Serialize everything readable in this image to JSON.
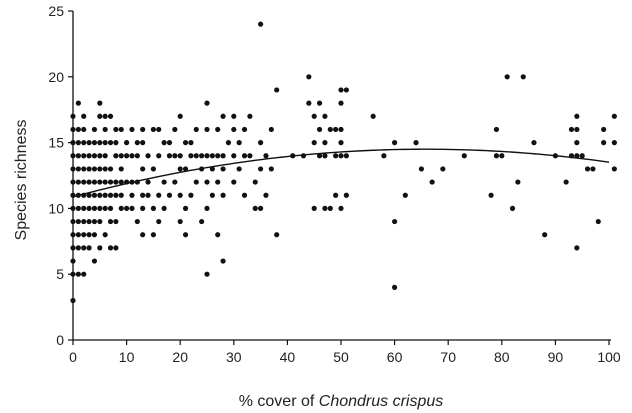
{
  "chart_data": {
    "type": "scatter",
    "title": "",
    "xlabel_prefix": "% cover of ",
    "xlabel_italic": "Chondrus crispus",
    "ylabel": "Species richness",
    "xlim": [
      0,
      100
    ],
    "ylim": [
      0,
      25
    ],
    "xticks": [
      0,
      10,
      20,
      30,
      40,
      50,
      60,
      70,
      80,
      90,
      100
    ],
    "yticks": [
      0,
      5,
      10,
      15,
      20,
      25
    ],
    "grid": false,
    "legend": "none",
    "marker_color": "#111111",
    "fit_color": "#111111",
    "points": [
      [
        0,
        3
      ],
      [
        0,
        5
      ],
      [
        0,
        6
      ],
      [
        0,
        7
      ],
      [
        0,
        8
      ],
      [
        0,
        9
      ],
      [
        0,
        10
      ],
      [
        0,
        11
      ],
      [
        0,
        12
      ],
      [
        0,
        13
      ],
      [
        0,
        14
      ],
      [
        0,
        15
      ],
      [
        0,
        16
      ],
      [
        0,
        17
      ],
      [
        1,
        5
      ],
      [
        1,
        7
      ],
      [
        1,
        8
      ],
      [
        1,
        9
      ],
      [
        1,
        10
      ],
      [
        1,
        11
      ],
      [
        1,
        12
      ],
      [
        1,
        13
      ],
      [
        1,
        14
      ],
      [
        1,
        15
      ],
      [
        1,
        16
      ],
      [
        1,
        18
      ],
      [
        2,
        5
      ],
      [
        2,
        7
      ],
      [
        2,
        8
      ],
      [
        2,
        9
      ],
      [
        2,
        10
      ],
      [
        2,
        11
      ],
      [
        2,
        12
      ],
      [
        2,
        13
      ],
      [
        2,
        14
      ],
      [
        2,
        15
      ],
      [
        2,
        16
      ],
      [
        2,
        17
      ],
      [
        3,
        7
      ],
      [
        3,
        8
      ],
      [
        3,
        9
      ],
      [
        3,
        10
      ],
      [
        3,
        11
      ],
      [
        3,
        12
      ],
      [
        3,
        13
      ],
      [
        3,
        14
      ],
      [
        3,
        15
      ],
      [
        4,
        6
      ],
      [
        4,
        8
      ],
      [
        4,
        9
      ],
      [
        4,
        10
      ],
      [
        4,
        11
      ],
      [
        4,
        12
      ],
      [
        4,
        13
      ],
      [
        4,
        14
      ],
      [
        4,
        15
      ],
      [
        4,
        16
      ],
      [
        5,
        7
      ],
      [
        5,
        9
      ],
      [
        5,
        10
      ],
      [
        5,
        11
      ],
      [
        5,
        12
      ],
      [
        5,
        13
      ],
      [
        5,
        14
      ],
      [
        5,
        15
      ],
      [
        5,
        17
      ],
      [
        5,
        18
      ],
      [
        6,
        8
      ],
      [
        6,
        10
      ],
      [
        6,
        11
      ],
      [
        6,
        12
      ],
      [
        6,
        13
      ],
      [
        6,
        14
      ],
      [
        6,
        15
      ],
      [
        6,
        16
      ],
      [
        6,
        17
      ],
      [
        7,
        7
      ],
      [
        7,
        9
      ],
      [
        7,
        10
      ],
      [
        7,
        11
      ],
      [
        7,
        12
      ],
      [
        7,
        13
      ],
      [
        7,
        15
      ],
      [
        7,
        17
      ],
      [
        8,
        7
      ],
      [
        8,
        9
      ],
      [
        8,
        11
      ],
      [
        8,
        12
      ],
      [
        8,
        14
      ],
      [
        8,
        15
      ],
      [
        8,
        16
      ],
      [
        9,
        10
      ],
      [
        9,
        11
      ],
      [
        9,
        12
      ],
      [
        9,
        13
      ],
      [
        9,
        14
      ],
      [
        9,
        16
      ],
      [
        10,
        10
      ],
      [
        10,
        12
      ],
      [
        10,
        14
      ],
      [
        10,
        15
      ],
      [
        11,
        10
      ],
      [
        11,
        11
      ],
      [
        11,
        12
      ],
      [
        11,
        14
      ],
      [
        11,
        16
      ],
      [
        12,
        9
      ],
      [
        12,
        12
      ],
      [
        12,
        14
      ],
      [
        12,
        15
      ],
      [
        13,
        8
      ],
      [
        13,
        10
      ],
      [
        13,
        11
      ],
      [
        13,
        13
      ],
      [
        13,
        15
      ],
      [
        13,
        16
      ],
      [
        14,
        11
      ],
      [
        14,
        12
      ],
      [
        14,
        14
      ],
      [
        15,
        8
      ],
      [
        15,
        10
      ],
      [
        15,
        13
      ],
      [
        15,
        16
      ],
      [
        16,
        9
      ],
      [
        16,
        11
      ],
      [
        16,
        14
      ],
      [
        16,
        16
      ],
      [
        17,
        10
      ],
      [
        17,
        12
      ],
      [
        17,
        15
      ],
      [
        18,
        11
      ],
      [
        18,
        14
      ],
      [
        18,
        15
      ],
      [
        19,
        12
      ],
      [
        19,
        14
      ],
      [
        19,
        16
      ],
      [
        20,
        9
      ],
      [
        20,
        11
      ],
      [
        20,
        13
      ],
      [
        20,
        14
      ],
      [
        20,
        17
      ],
      [
        21,
        8
      ],
      [
        21,
        10
      ],
      [
        21,
        13
      ],
      [
        21,
        15
      ],
      [
        22,
        11
      ],
      [
        22,
        14
      ],
      [
        22,
        15
      ],
      [
        23,
        12
      ],
      [
        23,
        14
      ],
      [
        23,
        16
      ],
      [
        24,
        9
      ],
      [
        24,
        13
      ],
      [
        24,
        14
      ],
      [
        25,
        5
      ],
      [
        25,
        10
      ],
      [
        25,
        12
      ],
      [
        25,
        14
      ],
      [
        25,
        16
      ],
      [
        25,
        18
      ],
      [
        26,
        11
      ],
      [
        26,
        13
      ],
      [
        26,
        14
      ],
      [
        27,
        8
      ],
      [
        27,
        12
      ],
      [
        27,
        14
      ],
      [
        27,
        16
      ],
      [
        28,
        6
      ],
      [
        28,
        11
      ],
      [
        28,
        13
      ],
      [
        28,
        14
      ],
      [
        28,
        17
      ],
      [
        29,
        15
      ],
      [
        30,
        12
      ],
      [
        30,
        14
      ],
      [
        30,
        16
      ],
      [
        30,
        17
      ],
      [
        31,
        13
      ],
      [
        31,
        15
      ],
      [
        32,
        11
      ],
      [
        32,
        14
      ],
      [
        32,
        16
      ],
      [
        33,
        14
      ],
      [
        33,
        17
      ],
      [
        34,
        10
      ],
      [
        34,
        12
      ],
      [
        35,
        10
      ],
      [
        35,
        13
      ],
      [
        35,
        15
      ],
      [
        35,
        24
      ],
      [
        36,
        11
      ],
      [
        36,
        14
      ],
      [
        37,
        13
      ],
      [
        37,
        16
      ],
      [
        38,
        8
      ],
      [
        38,
        19
      ],
      [
        41,
        14
      ],
      [
        43,
        14
      ],
      [
        44,
        18
      ],
      [
        44,
        20
      ],
      [
        45,
        10
      ],
      [
        45,
        15
      ],
      [
        45,
        17
      ],
      [
        46,
        14
      ],
      [
        46,
        16
      ],
      [
        46,
        18
      ],
      [
        47,
        10
      ],
      [
        47,
        14
      ],
      [
        47,
        15
      ],
      [
        47,
        17
      ],
      [
        48,
        10
      ],
      [
        48,
        16
      ],
      [
        49,
        11
      ],
      [
        49,
        14
      ],
      [
        49,
        16
      ],
      [
        50,
        10
      ],
      [
        50,
        14
      ],
      [
        50,
        15
      ],
      [
        50,
        16
      ],
      [
        50,
        18
      ],
      [
        50,
        19
      ],
      [
        51,
        11
      ],
      [
        51,
        14
      ],
      [
        51,
        19
      ],
      [
        56,
        17
      ],
      [
        58,
        14
      ],
      [
        60,
        4
      ],
      [
        60,
        9
      ],
      [
        60,
        15
      ],
      [
        62,
        11
      ],
      [
        64,
        15
      ],
      [
        65,
        13
      ],
      [
        67,
        12
      ],
      [
        69,
        13
      ],
      [
        73,
        14
      ],
      [
        78,
        11
      ],
      [
        79,
        14
      ],
      [
        79,
        16
      ],
      [
        80,
        14
      ],
      [
        81,
        20
      ],
      [
        82,
        10
      ],
      [
        83,
        12
      ],
      [
        84,
        20
      ],
      [
        86,
        15
      ],
      [
        88,
        8
      ],
      [
        90,
        14
      ],
      [
        92,
        12
      ],
      [
        93,
        14
      ],
      [
        93,
        16
      ],
      [
        94,
        7
      ],
      [
        94,
        14
      ],
      [
        94,
        15
      ],
      [
        94,
        16
      ],
      [
        94,
        17
      ],
      [
        95,
        14
      ],
      [
        96,
        13
      ],
      [
        97,
        13
      ],
      [
        98,
        9
      ],
      [
        99,
        15
      ],
      [
        99,
        16
      ],
      [
        101,
        13
      ],
      [
        101,
        15
      ],
      [
        101,
        17
      ]
    ],
    "fit_line": {
      "type": "quadratic",
      "x_range": [
        0,
        100
      ],
      "points": [
        [
          0,
          10.9
        ],
        [
          10,
          11.9
        ],
        [
          20,
          12.7
        ],
        [
          30,
          13.4
        ],
        [
          40,
          13.9
        ],
        [
          50,
          14.3
        ],
        [
          60,
          14.5
        ],
        [
          66,
          14.55
        ],
        [
          70,
          14.5
        ],
        [
          80,
          14.3
        ],
        [
          90,
          14.0
        ],
        [
          100,
          13.5
        ]
      ]
    }
  }
}
